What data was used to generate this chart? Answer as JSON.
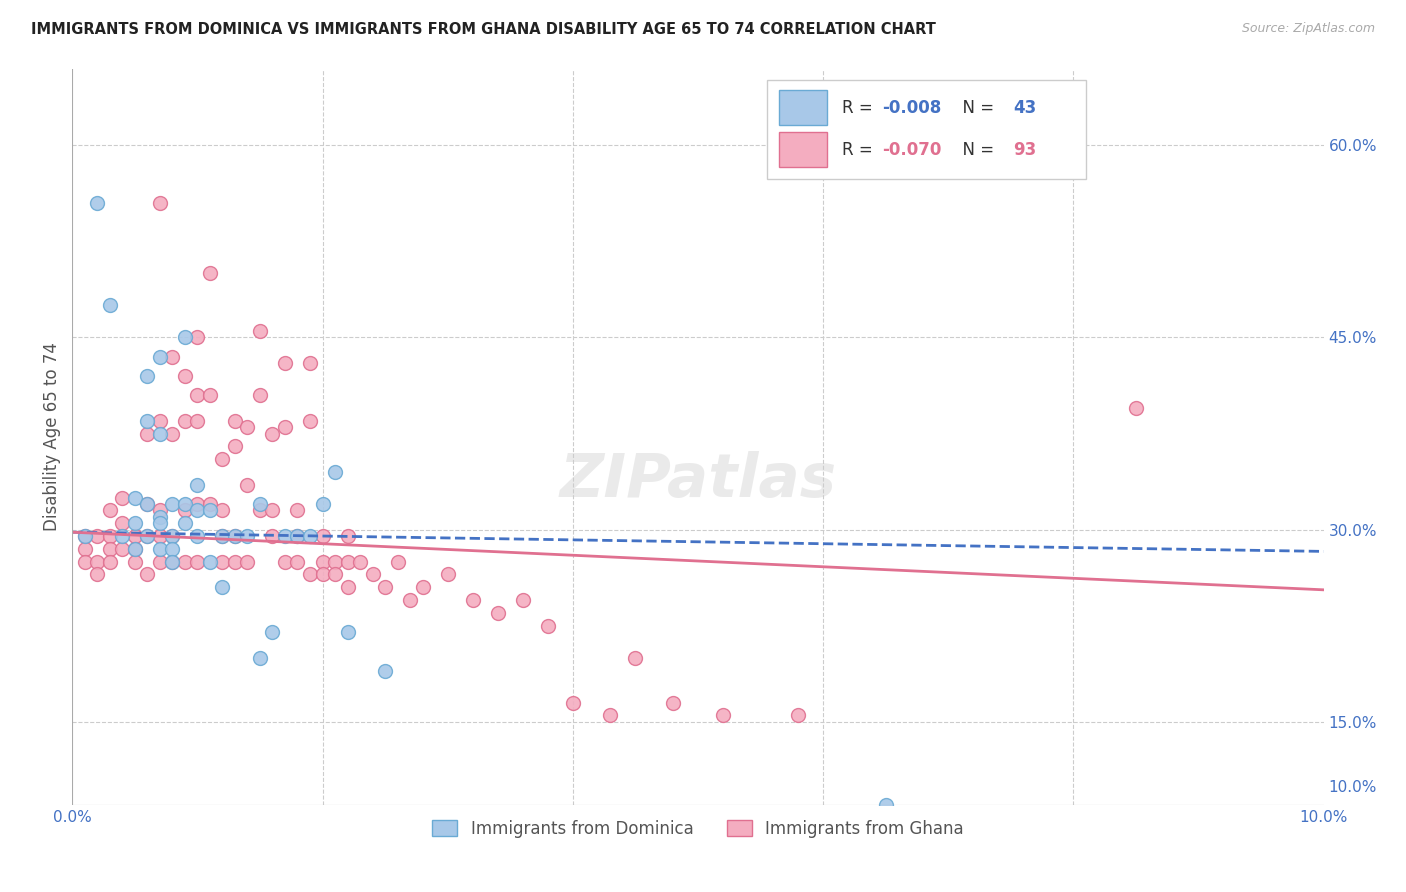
{
  "title": "IMMIGRANTS FROM DOMINICA VS IMMIGRANTS FROM GHANA DISABILITY AGE 65 TO 74 CORRELATION CHART",
  "source": "Source: ZipAtlas.com",
  "ylabel": "Disability Age 65 to 74",
  "xlim": [
    0.0,
    0.1
  ],
  "ylim": [
    0.085,
    0.66
  ],
  "dominica_color": "#a8c8e8",
  "ghana_color": "#f4adc0",
  "dominica_edge": "#6aaad4",
  "ghana_edge": "#e07090",
  "dominica_line_color": "#4472C4",
  "ghana_line_color": "#E07090",
  "dominica_R": -0.008,
  "dominica_N": 43,
  "ghana_R": -0.07,
  "ghana_N": 93,
  "watermark": "ZIPatlas",
  "dominica_x": [
    0.001,
    0.002,
    0.003,
    0.004,
    0.005,
    0.005,
    0.005,
    0.006,
    0.006,
    0.006,
    0.006,
    0.007,
    0.007,
    0.007,
    0.007,
    0.007,
    0.008,
    0.008,
    0.008,
    0.008,
    0.009,
    0.009,
    0.009,
    0.01,
    0.01,
    0.01,
    0.011,
    0.011,
    0.012,
    0.012,
    0.013,
    0.014,
    0.015,
    0.015,
    0.016,
    0.017,
    0.018,
    0.019,
    0.02,
    0.021,
    0.022,
    0.025,
    0.065
  ],
  "dominica_y": [
    0.295,
    0.555,
    0.475,
    0.295,
    0.325,
    0.305,
    0.285,
    0.42,
    0.385,
    0.32,
    0.295,
    0.435,
    0.375,
    0.31,
    0.305,
    0.285,
    0.32,
    0.295,
    0.285,
    0.275,
    0.45,
    0.32,
    0.305,
    0.335,
    0.315,
    0.295,
    0.315,
    0.275,
    0.295,
    0.255,
    0.295,
    0.295,
    0.32,
    0.2,
    0.22,
    0.295,
    0.295,
    0.295,
    0.32,
    0.345,
    0.22,
    0.19,
    0.085
  ],
  "ghana_x": [
    0.001,
    0.001,
    0.001,
    0.002,
    0.002,
    0.002,
    0.003,
    0.003,
    0.003,
    0.003,
    0.004,
    0.004,
    0.004,
    0.005,
    0.005,
    0.005,
    0.006,
    0.006,
    0.006,
    0.006,
    0.007,
    0.007,
    0.007,
    0.007,
    0.007,
    0.008,
    0.008,
    0.008,
    0.008,
    0.009,
    0.009,
    0.009,
    0.009,
    0.01,
    0.01,
    0.01,
    0.01,
    0.01,
    0.011,
    0.011,
    0.011,
    0.012,
    0.012,
    0.012,
    0.012,
    0.013,
    0.013,
    0.013,
    0.013,
    0.014,
    0.014,
    0.014,
    0.015,
    0.015,
    0.015,
    0.016,
    0.016,
    0.016,
    0.017,
    0.017,
    0.017,
    0.018,
    0.018,
    0.018,
    0.019,
    0.019,
    0.019,
    0.02,
    0.02,
    0.02,
    0.021,
    0.021,
    0.022,
    0.022,
    0.022,
    0.023,
    0.024,
    0.025,
    0.026,
    0.027,
    0.028,
    0.03,
    0.032,
    0.034,
    0.036,
    0.038,
    0.04,
    0.043,
    0.045,
    0.048,
    0.052,
    0.058,
    0.085
  ],
  "ghana_y": [
    0.295,
    0.285,
    0.275,
    0.295,
    0.275,
    0.265,
    0.315,
    0.295,
    0.285,
    0.275,
    0.325,
    0.305,
    0.285,
    0.295,
    0.285,
    0.275,
    0.375,
    0.32,
    0.295,
    0.265,
    0.555,
    0.385,
    0.315,
    0.295,
    0.275,
    0.435,
    0.375,
    0.295,
    0.275,
    0.42,
    0.385,
    0.315,
    0.275,
    0.45,
    0.405,
    0.385,
    0.32,
    0.275,
    0.5,
    0.405,
    0.32,
    0.355,
    0.315,
    0.295,
    0.275,
    0.385,
    0.365,
    0.295,
    0.275,
    0.38,
    0.335,
    0.275,
    0.455,
    0.405,
    0.315,
    0.375,
    0.315,
    0.295,
    0.43,
    0.38,
    0.275,
    0.315,
    0.295,
    0.275,
    0.43,
    0.385,
    0.265,
    0.295,
    0.275,
    0.265,
    0.275,
    0.265,
    0.295,
    0.275,
    0.255,
    0.275,
    0.265,
    0.255,
    0.275,
    0.245,
    0.255,
    0.265,
    0.245,
    0.235,
    0.245,
    0.225,
    0.165,
    0.155,
    0.2,
    0.165,
    0.155,
    0.155,
    0.395
  ]
}
